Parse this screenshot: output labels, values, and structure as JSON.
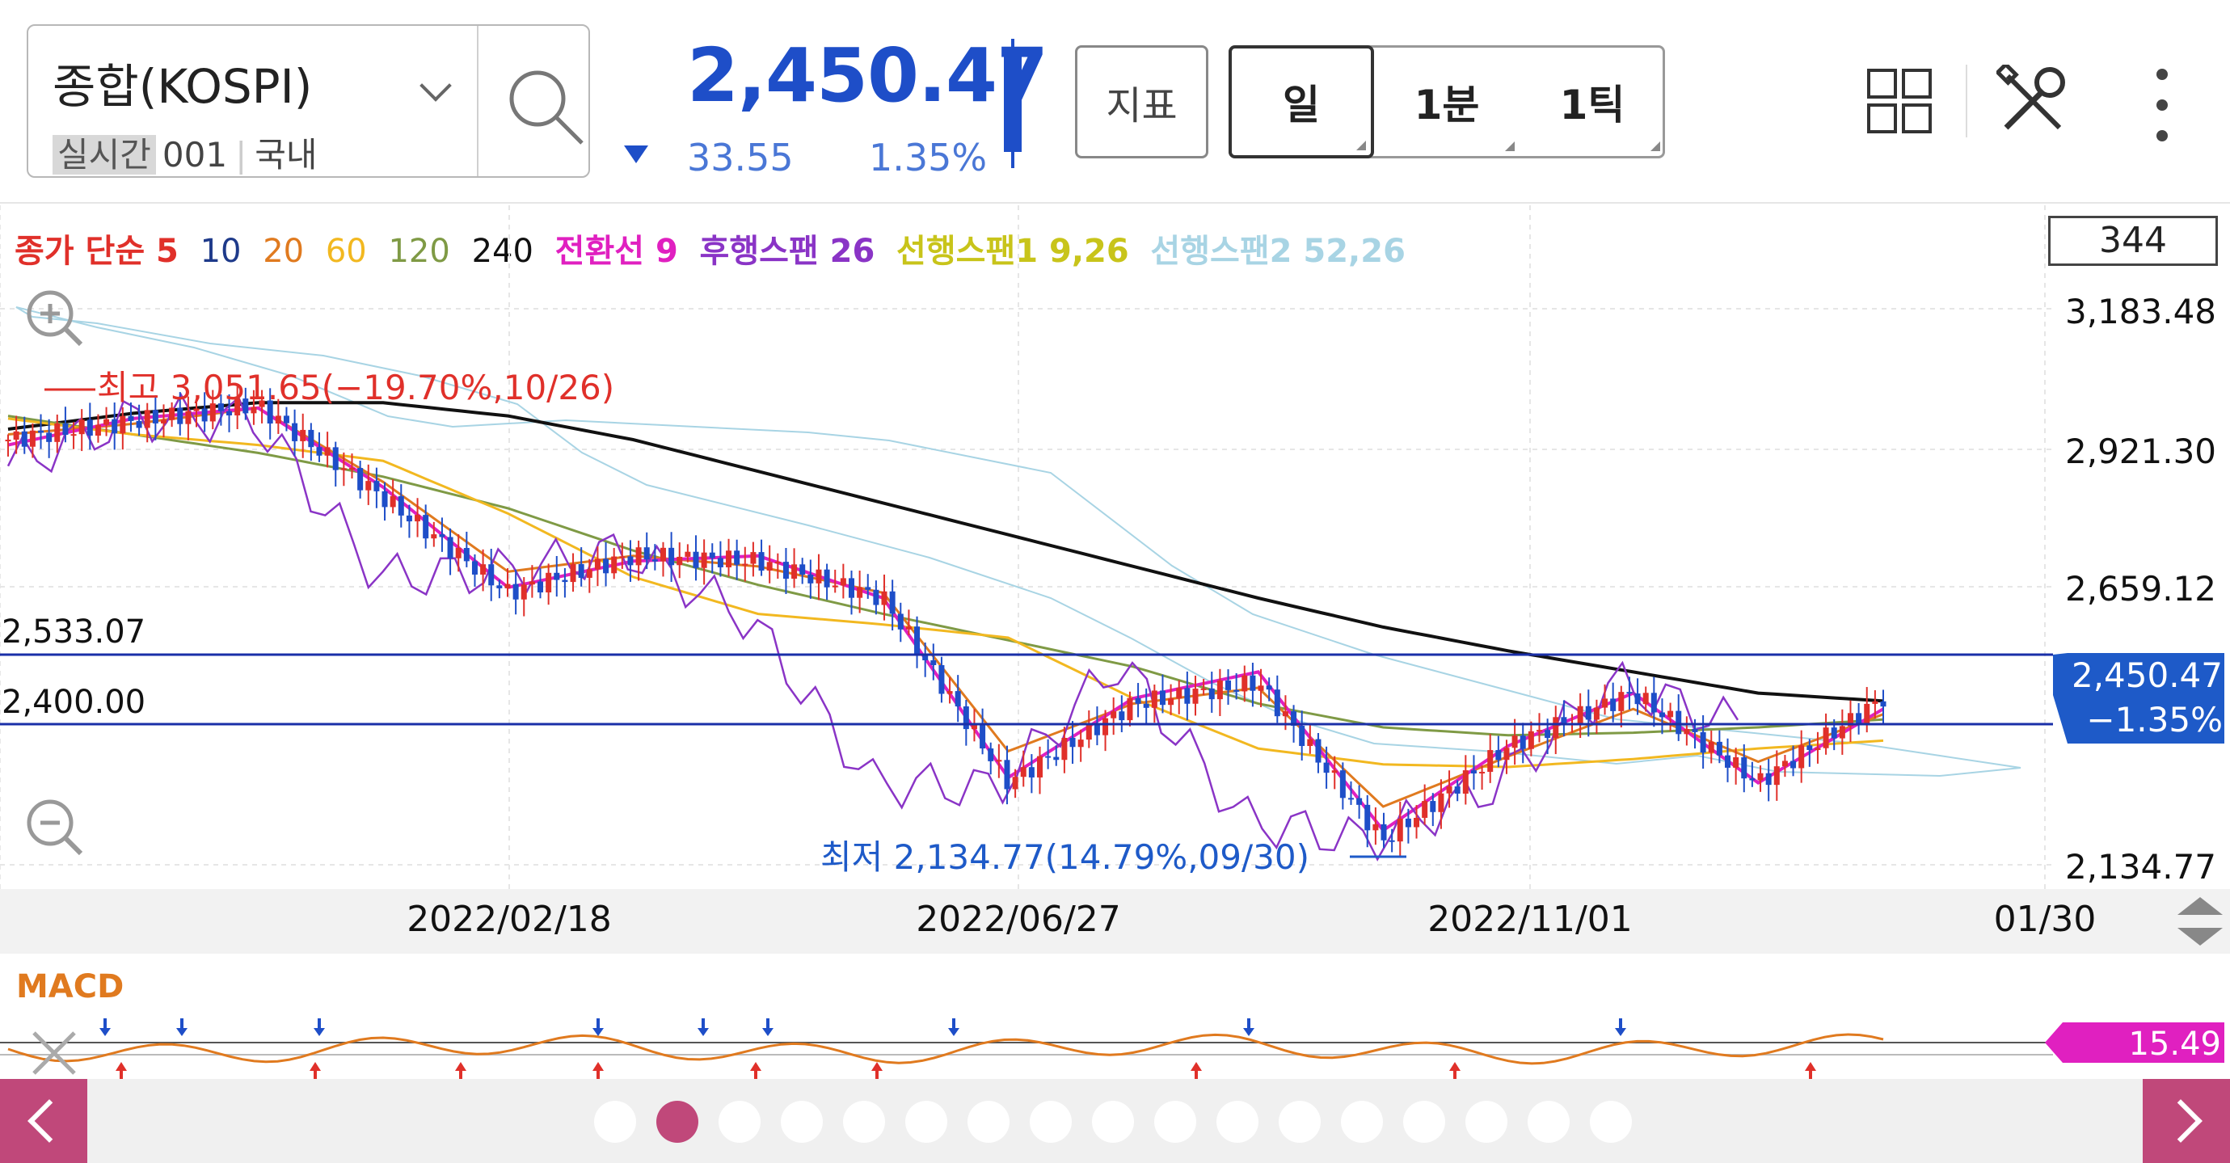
{
  "header": {
    "stock_name": "종합(KOSPI)",
    "realtime_badge": "실시간",
    "code": "001",
    "market": "국내",
    "price": "2,450.47",
    "change": "33.55",
    "change_pct": "1.35%",
    "indicator_button": "지표",
    "periods": [
      "일",
      "1분",
      "1틱"
    ],
    "active_period": "일"
  },
  "icons": {
    "search": "search-icon",
    "grid": "grid-icon",
    "tools": "tools-icon",
    "more": "more-vertical-icon",
    "zoom_in": "zoom-in-icon",
    "zoom_out": "zoom-out-icon",
    "close": "close-icon",
    "scroll": "up-down-arrow-icon",
    "prev": "chevron-left-icon",
    "next": "chevron-right-icon"
  },
  "legend": [
    {
      "text": "종가 단순 5",
      "color": "#e0302a"
    },
    {
      "text": "10",
      "color": "#1e3a8a"
    },
    {
      "text": "20",
      "color": "#e07a1f"
    },
    {
      "text": "60",
      "color": "#f2b820"
    },
    {
      "text": "120",
      "color": "#7f9a45"
    },
    {
      "text": "240",
      "color": "#111111"
    },
    {
      "text": "전환선 9",
      "color": "#e020c0"
    },
    {
      "text": "후행스팬 26",
      "color": "#8a34c6"
    },
    {
      "text": "선행스팬1 9,26",
      "color": "#c8c41a"
    },
    {
      "text": "선행스팬2 52,26",
      "color": "#a8d4e4"
    }
  ],
  "visible_count": "344",
  "annotations": {
    "high": "최고 3,051.65(−19.70%,10/26)",
    "low": "최저 2,134.77(14.79%,09/30)"
  },
  "price_tag": {
    "price": "2,450.47",
    "pct": "−1.35%"
  },
  "macd": {
    "label": "MACD",
    "value": "15.49"
  },
  "pager": {
    "count": 17,
    "active_index": 1
  },
  "chart_data": {
    "type": "candlestick",
    "title": "",
    "y_axis_labels": [
      "3,183.48",
      "2,921.30",
      "2,659.12",
      "2,134.77"
    ],
    "ylim": [
      2134.77,
      3183.48
    ],
    "x_axis_labels": [
      "2022/02/18",
      "2022/06/27",
      "2022/11/01",
      "01/30"
    ],
    "horizontal_lines": [
      {
        "label": "2,533.07",
        "value": 2533.07
      },
      {
        "label": "2,400.00",
        "value": 2400.0
      }
    ],
    "last_close": 2450.47,
    "high_point": {
      "value": 3051.65,
      "date": "10/26"
    },
    "low_point": {
      "value": 2134.77,
      "date": "09/30"
    },
    "series": [
      {
        "name": "240",
        "values": [
          2960,
          2990,
          3010,
          3010,
          2985,
          2940,
          2880,
          2820,
          2760,
          2700,
          2640,
          2585,
          2540,
          2500,
          2460,
          2445
        ]
      },
      {
        "name": "120",
        "values": [
          2985,
          2950,
          2915,
          2870,
          2810,
          2730,
          2665,
          2610,
          2560,
          2510,
          2440,
          2395,
          2380,
          2385,
          2395,
          2410
        ]
      },
      {
        "name": "60",
        "values": [
          2980,
          2950,
          2930,
          2900,
          2800,
          2680,
          2610,
          2590,
          2565,
          2450,
          2355,
          2325,
          2320,
          2335,
          2355,
          2370
        ]
      },
      {
        "name": "20",
        "values": [
          2950,
          2970,
          3000,
          2860,
          2690,
          2720,
          2700,
          2650,
          2350,
          2440,
          2470,
          2245,
          2340,
          2430,
          2330,
          2420
        ]
      },
      {
        "name": "전환선 9",
        "values": [
          2930,
          2980,
          3000,
          2850,
          2660,
          2710,
          2720,
          2640,
          2300,
          2450,
          2500,
          2200,
          2360,
          2460,
          2290,
          2430
        ]
      },
      {
        "name": "후행스팬 26",
        "values": [
          2890,
          2980,
          2980,
          2680,
          2690,
          2730,
          2600,
          2290,
          2280,
          2520,
          2220,
          2180,
          2280,
          2480,
          2400
        ]
      },
      {
        "name": "close",
        "values": [
          2940,
          2975,
          3005,
          2830,
          2650,
          2720,
          2710,
          2640,
          2290,
          2440,
          2480,
          2180,
          2360,
          2460,
          2290,
          2450.47
        ]
      }
    ]
  }
}
